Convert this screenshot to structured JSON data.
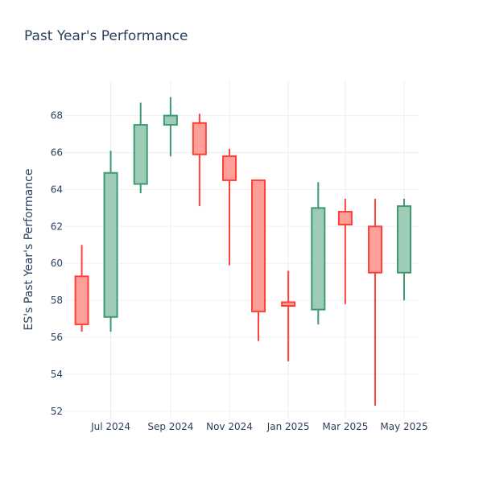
{
  "chart_data": {
    "type": "candlestick",
    "title": "Past Year's Performance",
    "xlabel": "",
    "ylabel": "ES's Past Year's Performance",
    "ylim": [
      51.6,
      69.9
    ],
    "yticks": [
      52,
      54,
      56,
      58,
      60,
      62,
      64,
      66,
      68
    ],
    "xticks": [
      {
        "date": "2024-07-01",
        "label": "Jul 2024"
      },
      {
        "date": "2024-09-01",
        "label": "Sep 2024"
      },
      {
        "date": "2024-11-01",
        "label": "Nov 2024"
      },
      {
        "date": "2025-01-01",
        "label": "Jan 2025"
      },
      {
        "date": "2025-03-01",
        "label": "Mar 2025"
      },
      {
        "date": "2025-05-01",
        "label": "May 2025"
      }
    ],
    "xrange": [
      "2024-05-14",
      "2025-05-16"
    ],
    "grid": true,
    "colors": {
      "increasing_line": "#3d9970",
      "increasing_fill": "#9fccb7",
      "decreasing_line": "#ff4136",
      "decreasing_fill": "#ff9f9a"
    },
    "candles": [
      {
        "date": "2024-06-01",
        "open": 59.3,
        "high": 61.0,
        "low": 56.3,
        "close": 56.7
      },
      {
        "date": "2024-07-01",
        "open": 57.1,
        "high": 66.1,
        "low": 56.3,
        "close": 64.9
      },
      {
        "date": "2024-08-01",
        "open": 64.3,
        "high": 68.7,
        "low": 63.8,
        "close": 67.5
      },
      {
        "date": "2024-09-01",
        "open": 67.5,
        "high": 69.0,
        "low": 65.8,
        "close": 68.0
      },
      {
        "date": "2024-10-01",
        "open": 67.6,
        "high": 68.1,
        "low": 63.1,
        "close": 65.9
      },
      {
        "date": "2024-11-01",
        "open": 65.8,
        "high": 66.2,
        "low": 59.9,
        "close": 64.5
      },
      {
        "date": "2024-12-01",
        "open": 64.5,
        "high": 64.5,
        "low": 55.8,
        "close": 57.4
      },
      {
        "date": "2025-01-01",
        "open": 57.9,
        "high": 59.6,
        "low": 54.7,
        "close": 57.7
      },
      {
        "date": "2025-02-01",
        "open": 57.5,
        "high": 64.4,
        "low": 56.7,
        "close": 63.0
      },
      {
        "date": "2025-03-01",
        "open": 62.8,
        "high": 63.5,
        "low": 57.8,
        "close": 62.1
      },
      {
        "date": "2025-04-01",
        "open": 62.0,
        "high": 63.5,
        "low": 52.3,
        "close": 59.5
      },
      {
        "date": "2025-05-01",
        "open": 59.5,
        "high": 63.5,
        "low": 58.0,
        "close": 63.1
      }
    ]
  }
}
